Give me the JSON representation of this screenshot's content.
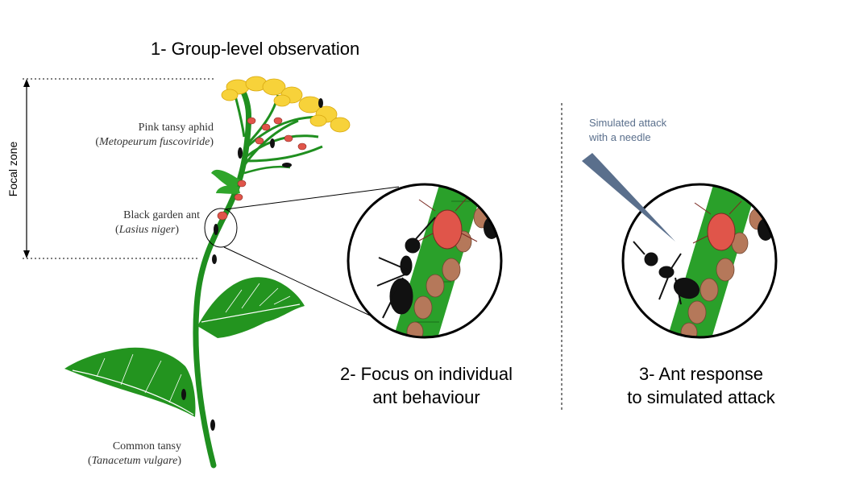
{
  "titles": {
    "group_level": "1- Group-level observation",
    "focus_line1": "2- Focus on individual",
    "focus_line2": "ant behaviour",
    "response_line1": "3- Ant response",
    "response_line2": "to simulated attack"
  },
  "focal_zone_label": "Focal zone",
  "labels": {
    "aphid_common": "Pink tansy aphid",
    "aphid_latin": "Metopeurum fuscoviride",
    "ant_common": "Black garden ant",
    "ant_latin": "Lasius niger",
    "plant_common": "Common tansy",
    "plant_latin": "Tanacetum vulgare",
    "needle_line1": "Simulated attack",
    "needle_line2": "with a needle"
  },
  "colors": {
    "stem": "#2a9a2a",
    "leaf": "#23941f",
    "flower": "#f7d23a",
    "aphid_red": "#e0554a",
    "aphid_brown": "#b5785a",
    "ant": "#111111",
    "needle": "#5a6f8c",
    "needle_text": "#5a6f8c"
  }
}
